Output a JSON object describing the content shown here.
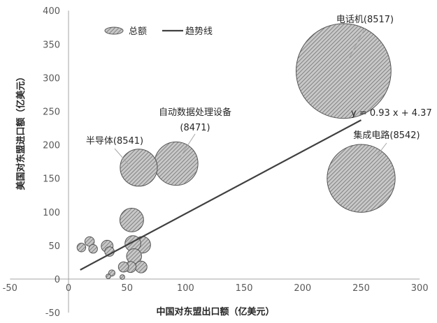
{
  "chart_data": {
    "type": "scatter",
    "subtype": "bubble",
    "xlabel": "中国对东盟出口额（亿美元）",
    "ylabel": "美国对东盟进口额（亿美元）",
    "xlim": [
      -50,
      300
    ],
    "ylim": [
      -50,
      400
    ],
    "x_ticks": [
      "-50",
      "0",
      "50",
      "100",
      "150",
      "200",
      "250",
      "300"
    ],
    "y_ticks": [
      "-50",
      "0",
      "50",
      "100",
      "150",
      "200",
      "250",
      "300",
      "350",
      "400"
    ],
    "grid": false,
    "legend": {
      "position": "top-left",
      "entries": [
        {
          "label": "总额",
          "kind": "bubble"
        },
        {
          "label": "趋势线",
          "kind": "line"
        }
      ]
    },
    "series": [
      {
        "name": "总额",
        "points": [
          {
            "x": 235,
            "y": 310,
            "r": 240,
            "label": "电话机(8517)"
          },
          {
            "x": 250,
            "y": 150,
            "r": 172,
            "label": "集成电路(8542)"
          },
          {
            "x": 92,
            "y": 172,
            "r": 110,
            "label": "自动数据处理设备 (8471)"
          },
          {
            "x": 60,
            "y": 166,
            "r": 94,
            "label": "半导体(8541)"
          },
          {
            "x": 54,
            "y": 88,
            "r": 60
          },
          {
            "x": 55,
            "y": 53,
            "r": 40
          },
          {
            "x": 63,
            "y": 51,
            "r": 42
          },
          {
            "x": 56,
            "y": 34,
            "r": 38
          },
          {
            "x": 53,
            "y": 18,
            "r": 28
          },
          {
            "x": 62,
            "y": 18,
            "r": 30
          },
          {
            "x": 47,
            "y": 18,
            "r": 26
          },
          {
            "x": 33,
            "y": 49,
            "r": 30
          },
          {
            "x": 35,
            "y": 41,
            "r": 24
          },
          {
            "x": 18,
            "y": 56,
            "r": 24
          },
          {
            "x": 21,
            "y": 45,
            "r": 22
          },
          {
            "x": 11,
            "y": 47,
            "r": 22
          },
          {
            "x": 37,
            "y": 9,
            "r": 16
          },
          {
            "x": 34,
            "y": 4,
            "r": 12
          },
          {
            "x": 46,
            "y": 3,
            "r": 12
          }
        ]
      }
    ],
    "trendline": {
      "name": "趋势线",
      "slope": 0.93,
      "intercept": 4.37,
      "x_range": [
        10,
        250
      ],
      "equation": "y = 0.93 x + 4.37"
    },
    "colors": {
      "bubble_fill": "#c8c8c8",
      "bubble_hatch": "#707070",
      "bubble_stroke": "#555555",
      "trendline": "#404040",
      "axis": "#a6a6a6"
    }
  }
}
